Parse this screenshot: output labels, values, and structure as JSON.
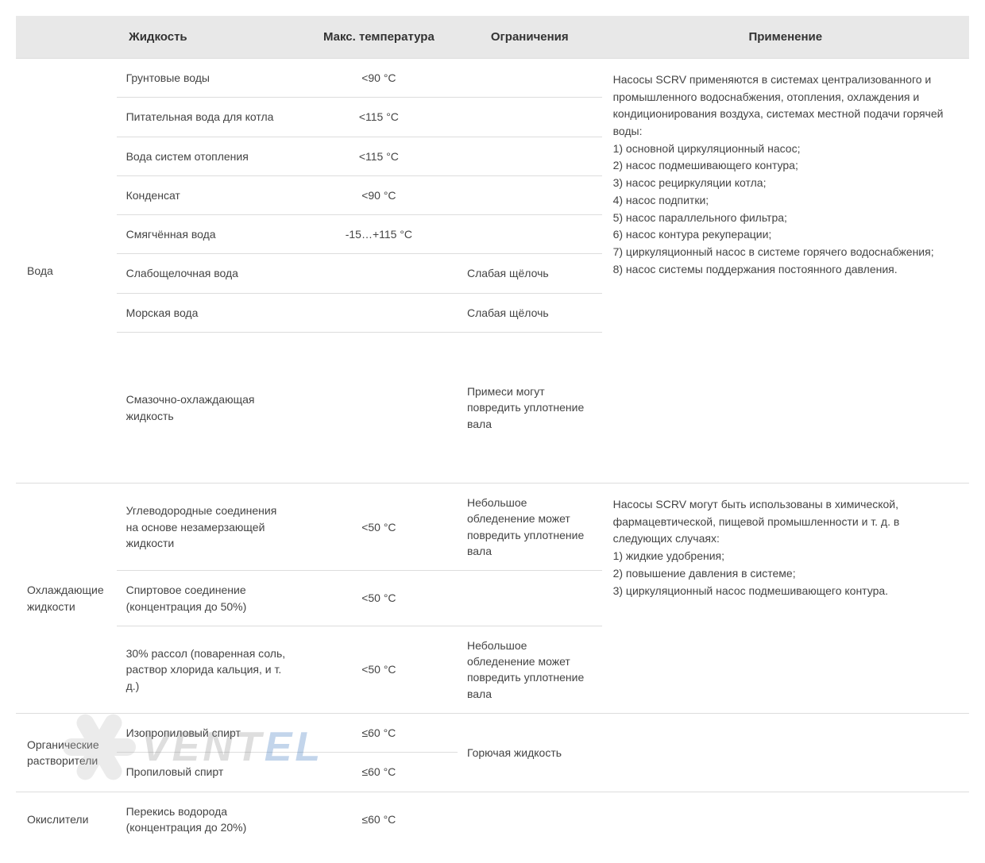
{
  "headers": {
    "liquid": "Жидкость",
    "max_temp": "Макс. температура",
    "limitations": "Ограничения",
    "application": "Применение"
  },
  "colors": {
    "header_bg": "#e8e8e8",
    "border": "#dddddd",
    "text": "#333333",
    "cell_text": "#444444",
    "watermark_gray": "#8a8a8a",
    "watermark_blue": "#2a6db8"
  },
  "groups": [
    {
      "category": "Вода",
      "application": "Насосы SCRV применяются в системах централизованного и промышленного водоснабжения, отопления, охлаждения и кондиционирования воздуха, системах местной подачи горячей воды:\n1) основной циркуляционный насос;\n2) насос подмешивающего контура;\n3) насос рециркуляции котла;\n4) насос подпитки;\n5) насос параллельного фильтра;\n6) насос контура рекуперации;\n7) циркуляционный насос в системе горячего водоснабжения;\n8) насос системы поддержания постоянного давления.",
      "rows": [
        {
          "liquid": "Грунтовые воды",
          "temp": "<90 °C",
          "limit": ""
        },
        {
          "liquid": "Питательная вода для котла",
          "temp": "<115 °C",
          "limit": ""
        },
        {
          "liquid": "Вода систем отопления",
          "temp": "<115 °C",
          "limit": ""
        },
        {
          "liquid": "Конденсат",
          "temp": "<90 °C",
          "limit": ""
        },
        {
          "liquid": "Смягчённая вода",
          "temp": "-15…+115 °C",
          "limit": ""
        },
        {
          "liquid": "Слабощелочная вода",
          "temp": "",
          "limit": "Слабая щёлочь"
        },
        {
          "liquid": "Морская вода",
          "temp": "",
          "limit": "Слабая щёлочь"
        },
        {
          "liquid": "Смазочно-охлаждающая жидкость",
          "temp": "",
          "limit": "Примеси могут повредить уплотнение вала",
          "tall": true
        }
      ]
    },
    {
      "category": "Охлаждающие жидкости",
      "application": "Насосы SCRV могут быть использованы в химической, фармацевтической, пищевой промышленности и т. д. в следующих случаях:\n1) жидкие удобрения;\n2) повышение давления в системе;\n3) циркуляционный насос подмешивающего контура.",
      "rows": [
        {
          "liquid": "Углеводородные соединения на основе незамерзающей жидкости",
          "temp": "<50 °C",
          "limit": "Небольшое обледенение может повредить уплотнение вала"
        },
        {
          "liquid": "Спиртовое соединение (концентрация до 50%)",
          "temp": "<50 °C",
          "limit": ""
        },
        {
          "liquid": "30% рассол (поваренная соль, раствор хлорида кальция, и т. д.)",
          "temp": "<50 °C",
          "limit": "Небольшое обледенение может повредить уплотнение вала"
        }
      ]
    },
    {
      "category": "Органические растворители",
      "application": "",
      "limit_shared": "Горючая жидкость",
      "rows": [
        {
          "liquid": "Изопропиловый спирт",
          "temp": "≤60 °C"
        },
        {
          "liquid": "Пропиловый спирт",
          "temp": "≤60 °C"
        }
      ]
    },
    {
      "category": "Окислители",
      "application": "",
      "rows": [
        {
          "liquid": "Перекись водорода (концентрация до 20%)",
          "temp": "≤60 °C",
          "limit": ""
        }
      ]
    }
  ],
  "watermark": {
    "part_a": "VENT",
    "part_b": "EL"
  }
}
